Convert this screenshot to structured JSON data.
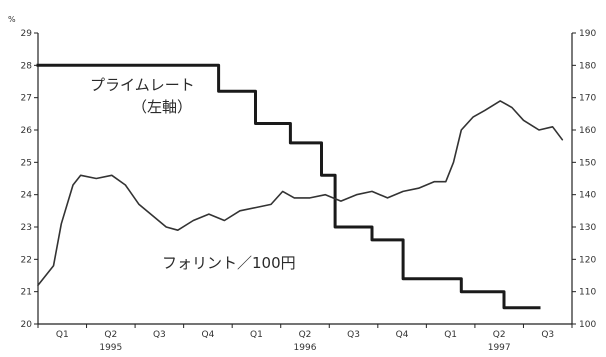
{
  "chart_data": {
    "type": "line",
    "title": "",
    "left_axis": {
      "unit": "%",
      "ylim": [
        20,
        29
      ],
      "ticks": [
        20,
        21,
        22,
        23,
        24,
        25,
        26,
        27,
        28,
        29
      ]
    },
    "right_axis": {
      "ylim": [
        100,
        190
      ],
      "ticks": [
        100,
        110,
        120,
        130,
        140,
        150,
        160,
        170,
        180,
        190
      ]
    },
    "x_quarters": [
      "Q1",
      "Q2",
      "Q3",
      "Q4",
      "Q1",
      "Q2",
      "Q3",
      "Q4",
      "Q1",
      "Q2",
      "Q3"
    ],
    "x_years": [
      "1995",
      "1996",
      "1997"
    ],
    "series": [
      {
        "name": "プライムレート\n（左軸）",
        "axis": "left",
        "step": true,
        "color": "#1a1a1a",
        "points": [
          [
            1995.0,
            28.0
          ],
          [
            1995.93,
            28.0
          ],
          [
            1995.93,
            27.2
          ],
          [
            1996.12,
            27.2
          ],
          [
            1996.12,
            26.2
          ],
          [
            1996.3,
            26.2
          ],
          [
            1996.3,
            25.6
          ],
          [
            1996.46,
            25.6
          ],
          [
            1996.46,
            24.6
          ],
          [
            1996.53,
            24.6
          ],
          [
            1996.53,
            23.0
          ],
          [
            1996.72,
            23.0
          ],
          [
            1996.72,
            22.6
          ],
          [
            1996.88,
            22.6
          ],
          [
            1996.88,
            21.4
          ],
          [
            1997.18,
            21.4
          ],
          [
            1997.18,
            21.0
          ],
          [
            1997.4,
            21.0
          ],
          [
            1997.4,
            20.5
          ],
          [
            1997.58,
            20.5
          ]
        ]
      },
      {
        "name": "フォリント／100円",
        "axis": "right",
        "step": false,
        "color": "#333333",
        "points": [
          [
            1995.0,
            112
          ],
          [
            1995.08,
            118
          ],
          [
            1995.12,
            131
          ],
          [
            1995.18,
            143
          ],
          [
            1995.22,
            146
          ],
          [
            1995.3,
            145
          ],
          [
            1995.38,
            146
          ],
          [
            1995.45,
            143
          ],
          [
            1995.52,
            137
          ],
          [
            1995.6,
            133
          ],
          [
            1995.66,
            130
          ],
          [
            1995.72,
            129
          ],
          [
            1995.8,
            132
          ],
          [
            1995.88,
            134
          ],
          [
            1995.96,
            132
          ],
          [
            1996.04,
            135
          ],
          [
            1996.12,
            136
          ],
          [
            1996.2,
            137
          ],
          [
            1996.26,
            141
          ],
          [
            1996.32,
            139
          ],
          [
            1996.4,
            139
          ],
          [
            1996.48,
            140
          ],
          [
            1996.56,
            138
          ],
          [
            1996.64,
            140
          ],
          [
            1996.72,
            141
          ],
          [
            1996.8,
            139
          ],
          [
            1996.88,
            141
          ],
          [
            1996.96,
            142
          ],
          [
            1997.04,
            144
          ],
          [
            1997.1,
            144
          ],
          [
            1997.14,
            150
          ],
          [
            1997.18,
            160
          ],
          [
            1997.24,
            164
          ],
          [
            1997.3,
            166
          ],
          [
            1997.38,
            169
          ],
          [
            1997.44,
            167
          ],
          [
            1997.5,
            163
          ],
          [
            1997.58,
            160
          ],
          [
            1997.65,
            161
          ],
          [
            1997.7,
            157
          ]
        ]
      }
    ],
    "legend": "inline labels"
  }
}
